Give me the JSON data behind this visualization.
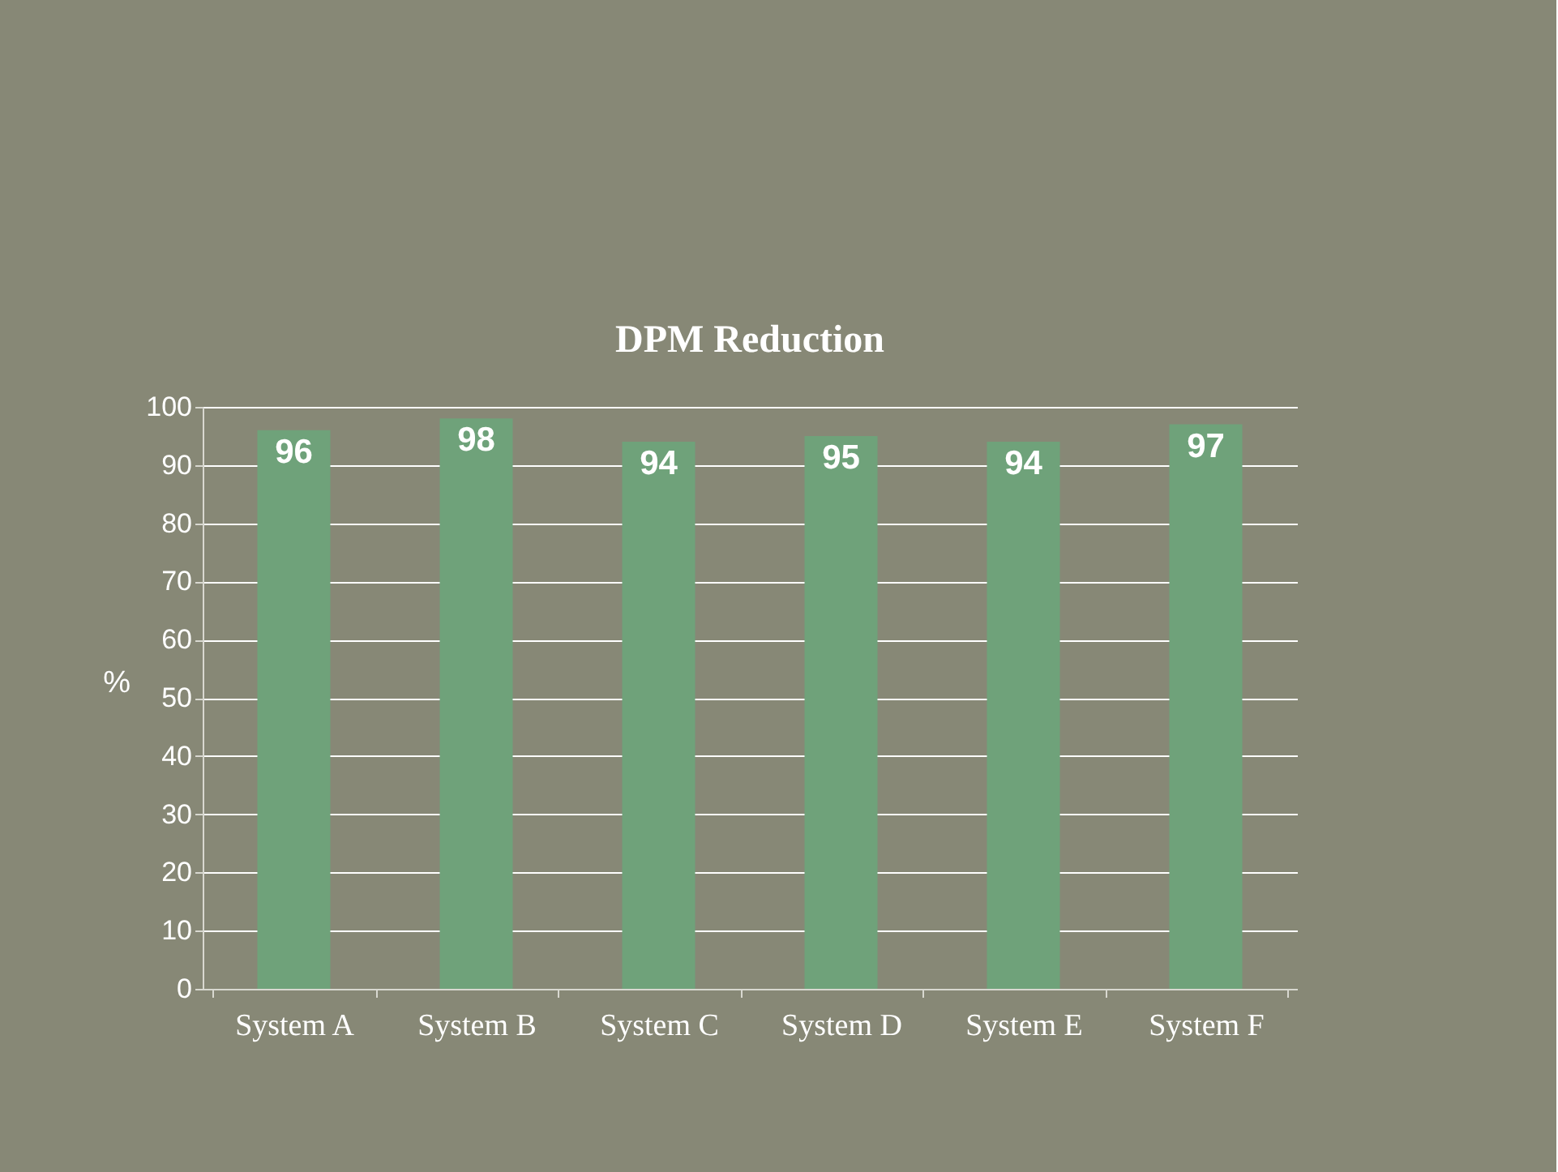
{
  "chart_data": {
    "type": "bar",
    "title": "DPM Reduction",
    "ylabel": "%",
    "categories": [
      "System A",
      "System B",
      "System C",
      "System D",
      "System E",
      "System F"
    ],
    "values": [
      96,
      98,
      94,
      95,
      94,
      97
    ],
    "color": "#6fa27a",
    "ylim": [
      0,
      100
    ],
    "yticks": [
      0,
      10,
      20,
      30,
      40,
      50,
      60,
      70,
      80,
      90,
      100
    ],
    "grid": "y",
    "data_labels": true
  }
}
